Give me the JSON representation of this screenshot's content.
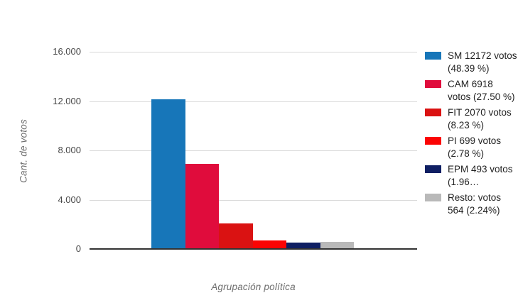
{
  "chart_data": {
    "type": "bar",
    "title": "",
    "xlabel": "Agrupación política",
    "ylabel": "Cant. de votos",
    "ylim": [
      0,
      16000
    ],
    "grid": true,
    "legend_position": "right",
    "y_ticks": [
      {
        "value": 16000,
        "label": "16.000"
      },
      {
        "value": 12000,
        "label": "12.000"
      },
      {
        "value": 8000,
        "label": "8.000"
      },
      {
        "value": 4000,
        "label": "4.000"
      },
      {
        "value": 0,
        "label": "0"
      }
    ],
    "categories": [
      "Agrupación política"
    ],
    "series": [
      {
        "party": "SM",
        "votes": 12172,
        "percent": 48.39,
        "color": "#1776b9",
        "legend_label": "SM 12172 votos (48.39 %)"
      },
      {
        "party": "CAM",
        "votes": 6918,
        "percent": 27.5,
        "color": "#e00c3c",
        "legend_label": "CAM 6918 votos (27.50 %)"
      },
      {
        "party": "FIT",
        "votes": 2070,
        "percent": 8.23,
        "color": "#da1212",
        "legend_label": "FIT 2070 votos (8.23 %)"
      },
      {
        "party": "PI",
        "votes": 699,
        "percent": 2.78,
        "color": "#fb0404",
        "legend_label": "PI 699 votos (2.78 %)"
      },
      {
        "party": "EPM",
        "votes": 493,
        "percent": 1.96,
        "color": "#0f1f63",
        "legend_label": "EPM 493 votos (1.96…"
      },
      {
        "party": "Resto",
        "votes": 564,
        "percent": 2.24,
        "color": "#b9b9b9",
        "legend_label": "Resto: votos 564 (2.24%)"
      }
    ]
  }
}
